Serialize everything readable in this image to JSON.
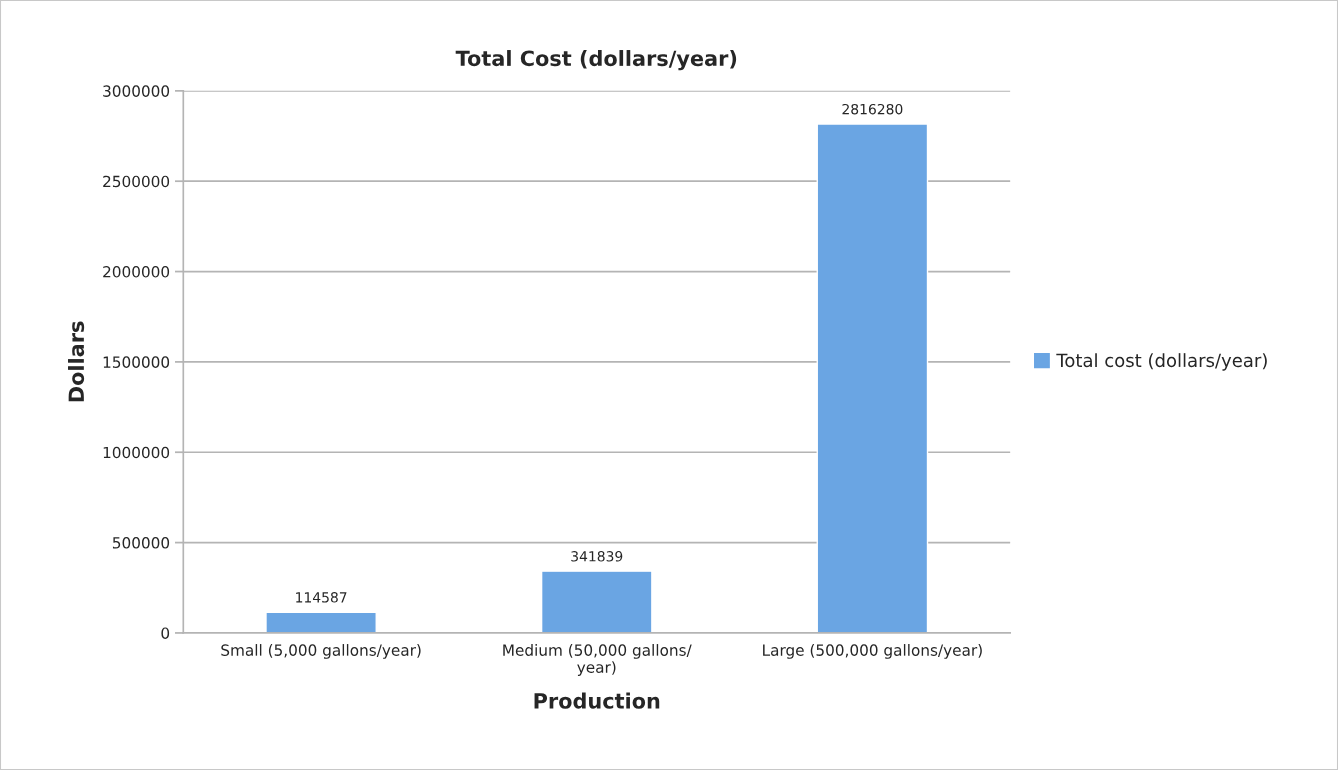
{
  "chart_data": {
    "type": "bar",
    "title": "Total Cost (dollars/year)",
    "xlabel": "Production",
    "ylabel": "Dollars",
    "categories": [
      "Small (5,000 gallons/year)",
      "Medium (50,000 gallons/\nyear)",
      "Large (500,000 gallons/year)"
    ],
    "series": [
      {
        "name": "Total cost (dollars/year)",
        "color": "#6aa5e3",
        "values": [
          114587,
          341839,
          2816280
        ]
      }
    ],
    "ylim": [
      0,
      3000000
    ],
    "yticks": [
      0,
      500000,
      1000000,
      1500000,
      2000000,
      2500000,
      3000000
    ],
    "grid": "y",
    "legend": "right",
    "data_labels": true
  }
}
